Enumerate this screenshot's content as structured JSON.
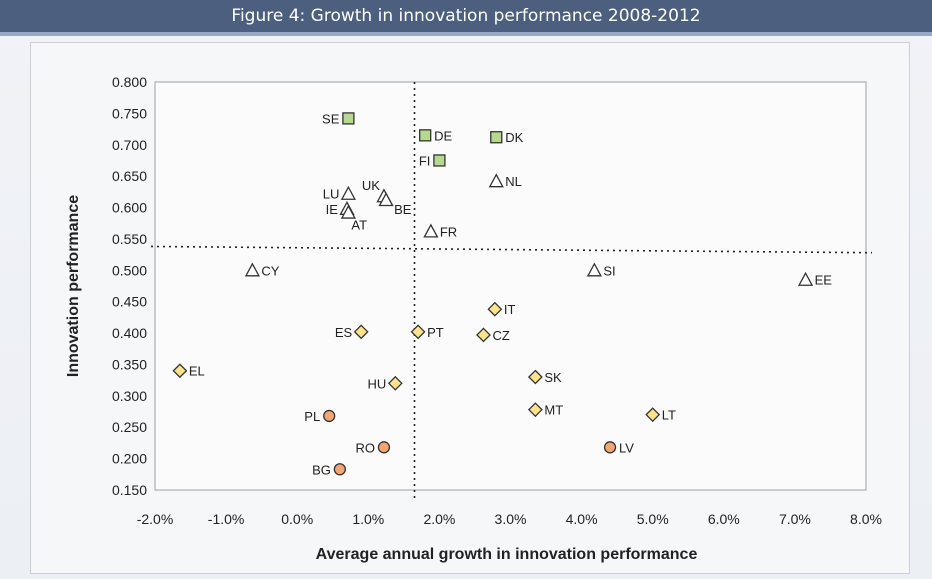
{
  "figure": {
    "title": "Figure 4: Growth in innovation performance 2008-2012"
  },
  "colors": {
    "title_bar": "#4c5f7f",
    "innovation_leaders": "#b7d88f",
    "innovation_followers": "#ffffff",
    "moderate_innovators": "#ffe38a",
    "modest_innovators": "#f2a673"
  },
  "chart_data": {
    "type": "scatter",
    "title": "",
    "xlabel": "Average annual growth in innovation performance",
    "ylabel": "Innovation performance",
    "xlim": [
      -0.02,
      0.08
    ],
    "ylim": [
      0.15,
      0.8
    ],
    "x_ticks": [
      "-2.0%",
      "-1.0%",
      "0.0%",
      "1.0%",
      "2.0%",
      "3.0%",
      "4.0%",
      "5.0%",
      "6.0%",
      "7.0%",
      "8.0%"
    ],
    "y_ticks": [
      "0.800",
      "0.750",
      "0.700",
      "0.650",
      "0.600",
      "0.550",
      "0.500",
      "0.450",
      "0.400",
      "0.350",
      "0.300",
      "0.250",
      "0.200",
      "0.150"
    ],
    "x_tick_values": [
      -0.02,
      -0.01,
      0,
      0.01,
      0.02,
      0.03,
      0.04,
      0.05,
      0.06,
      0.07,
      0.08
    ],
    "y_tick_values": [
      0.8,
      0.75,
      0.7,
      0.65,
      0.6,
      0.55,
      0.5,
      0.45,
      0.4,
      0.35,
      0.3,
      0.25,
      0.2,
      0.15
    ],
    "reference_lines": {
      "x": 0.0165,
      "y_start": 0.538,
      "y_end": 0.528
    },
    "grid": false,
    "legend": "none",
    "series": [
      {
        "marker": "square",
        "color": "#b7d88f",
        "points": [
          {
            "label": "SE",
            "x": 0.0072,
            "y": 0.742
          },
          {
            "label": "DE",
            "x": 0.018,
            "y": 0.715
          },
          {
            "label": "DK",
            "x": 0.028,
            "y": 0.712
          },
          {
            "label": "FI",
            "x": 0.02,
            "y": 0.675
          }
        ]
      },
      {
        "marker": "triangle",
        "color": "#ffffff",
        "points": [
          {
            "label": "NL",
            "x": 0.028,
            "y": 0.642
          },
          {
            "label": "LU",
            "x": 0.0072,
            "y": 0.622
          },
          {
            "label": "UK",
            "x": 0.0122,
            "y": 0.618
          },
          {
            "label": "BE",
            "x": 0.0125,
            "y": 0.612
          },
          {
            "label": "IE",
            "x": 0.007,
            "y": 0.598
          },
          {
            "label": "AT",
            "x": 0.0072,
            "y": 0.592
          },
          {
            "label": "FR",
            "x": 0.0188,
            "y": 0.562
          },
          {
            "label": "CY",
            "x": -0.0063,
            "y": 0.5
          },
          {
            "label": "SI",
            "x": 0.0418,
            "y": 0.5
          },
          {
            "label": "EE",
            "x": 0.0715,
            "y": 0.485
          }
        ]
      },
      {
        "marker": "diamond",
        "color": "#ffe38a",
        "points": [
          {
            "label": "IT",
            "x": 0.0278,
            "y": 0.438
          },
          {
            "label": "ES",
            "x": 0.009,
            "y": 0.402
          },
          {
            "label": "PT",
            "x": 0.017,
            "y": 0.402
          },
          {
            "label": "CZ",
            "x": 0.0262,
            "y": 0.397
          },
          {
            "label": "EL",
            "x": -0.0165,
            "y": 0.34
          },
          {
            "label": "SK",
            "x": 0.0335,
            "y": 0.33
          },
          {
            "label": "HU",
            "x": 0.0138,
            "y": 0.32
          },
          {
            "label": "MT",
            "x": 0.0335,
            "y": 0.278
          },
          {
            "label": "LT",
            "x": 0.05,
            "y": 0.27
          }
        ]
      },
      {
        "marker": "circle",
        "color": "#f2a673",
        "points": [
          {
            "label": "PL",
            "x": 0.0045,
            "y": 0.268
          },
          {
            "label": "RO",
            "x": 0.0122,
            "y": 0.218
          },
          {
            "label": "LV",
            "x": 0.044,
            "y": 0.218
          },
          {
            "label": "BG",
            "x": 0.006,
            "y": 0.183
          }
        ]
      }
    ]
  }
}
